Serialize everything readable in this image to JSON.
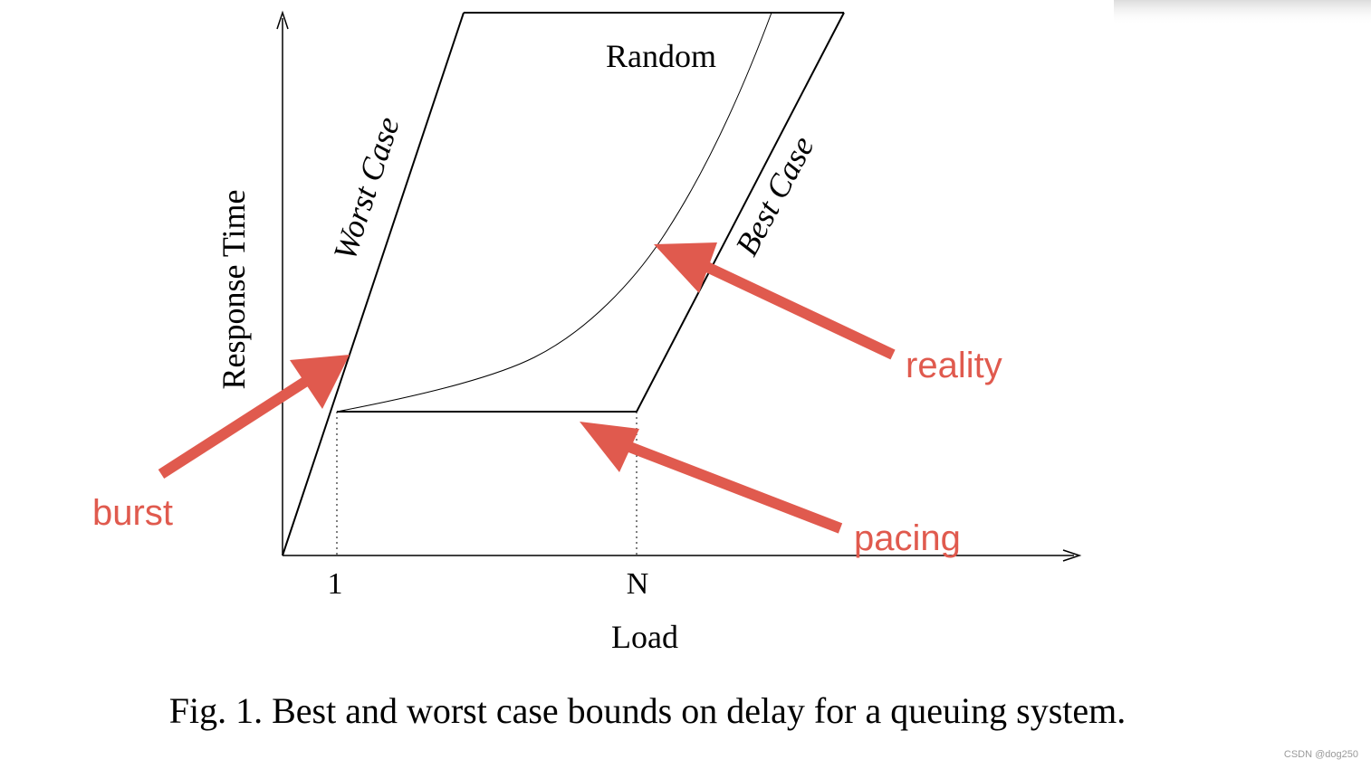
{
  "figure": {
    "axis_labels": {
      "y": "Response Time",
      "x": "Load"
    },
    "ticks": {
      "tick_1": "1",
      "tick_n": "N"
    },
    "curve_labels": {
      "worst_case": "Worst Case",
      "best_case": "Best Case",
      "random": "Random"
    },
    "annotations": {
      "burst": "burst",
      "pacing": "pacing",
      "reality": "reality"
    },
    "caption": "Fig. 1.  Best and worst case bounds on delay for a queuing system.",
    "colors": {
      "annotation": "#e05a4e",
      "line": "#000000"
    }
  },
  "watermark": "CSDN @dog250"
}
